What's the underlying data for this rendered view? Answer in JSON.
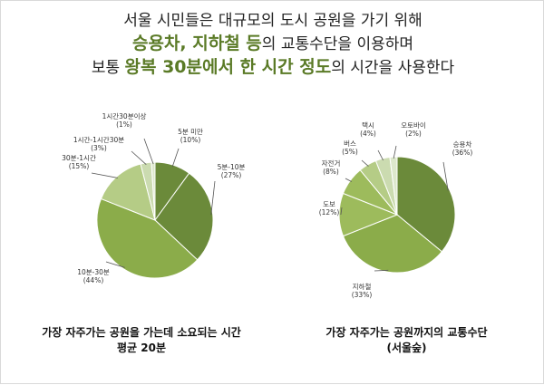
{
  "headline": {
    "line1": "서울 시민들은 대규모의 도시 공원을 가기 위해",
    "line2_em": "승용차, 지하철 등",
    "line2_rest": "의 교통수단을 이용하며",
    "line3_pre": "보통 ",
    "line3_em": "왕복 30분에서 한 시간 정도",
    "line3_rest": "의 시간을 사용한다"
  },
  "colors": {
    "highlight": "#5a7a26",
    "pie_shades": [
      "#6b8a3a",
      "#8bac4a",
      "#9dbb5c",
      "#b5cc86",
      "#cbdbb0",
      "#dde8cc"
    ]
  },
  "chart_data": [
    {
      "type": "pie",
      "title": "",
      "caption_line1": "가장 자주가는 공원을 가는데 소요되는 시간",
      "caption_line2": "평균 20분",
      "slices": [
        {
          "label": "5분 미만",
          "value": 10,
          "display": "(10%)"
        },
        {
          "label": "5분-10분",
          "value": 27,
          "display": "(27%)"
        },
        {
          "label": "10분-30분",
          "value": 44,
          "display": "(44%)"
        },
        {
          "label": "30분-1시간",
          "value": 15,
          "display": "(15%)"
        },
        {
          "label": "1시간-1시간30분",
          "value": 3,
          "display": "(3%)"
        },
        {
          "label": "1시간30분이상",
          "value": 1,
          "display": "(1%)"
        }
      ]
    },
    {
      "type": "pie",
      "title": "",
      "caption_line1": "가장 자주가는 공원까지의 교통수단",
      "caption_line2": "(서울숲)",
      "slices": [
        {
          "label": "승용차",
          "value": 36,
          "display": "(36%)"
        },
        {
          "label": "지하철",
          "value": 33,
          "display": "(33%)"
        },
        {
          "label": "도보",
          "value": 12,
          "display": "(12%)"
        },
        {
          "label": "자전거",
          "value": 8,
          "display": "(8%)"
        },
        {
          "label": "버스",
          "value": 5,
          "display": "(5%)"
        },
        {
          "label": "택시",
          "value": 4,
          "display": "(4%)"
        },
        {
          "label": "오토바이",
          "value": 2,
          "display": "(2%)"
        }
      ]
    }
  ]
}
